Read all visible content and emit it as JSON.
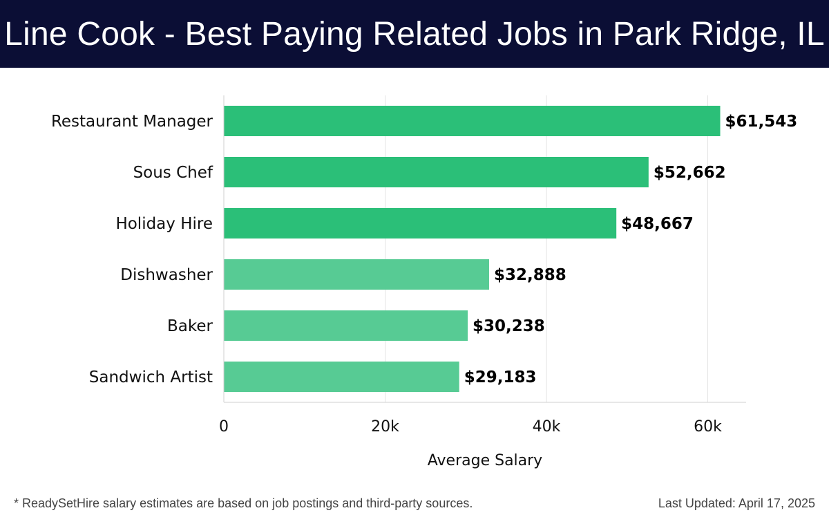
{
  "header": {
    "title": "Line Cook - Best Paying Related Jobs in Park Ridge, IL"
  },
  "footer": {
    "note": "* ReadySetHire salary estimates are based on job postings and third-party sources.",
    "updated": "Last Updated: April 17, 2025"
  },
  "colors": {
    "header_bg": "#0b0e35",
    "bar_dark": "#2bbf78",
    "bar_light": "#57cb94",
    "grid": "#e3e3e3"
  },
  "chart_data": {
    "type": "bar",
    "orientation": "horizontal",
    "title": "Line Cook - Best Paying Related Jobs in Park Ridge, IL",
    "xlabel": "Average Salary",
    "ylabel": "",
    "categories": [
      "Restaurant Manager",
      "Sous Chef",
      "Holiday Hire",
      "Dishwasher",
      "Baker",
      "Sandwich Artist"
    ],
    "values": [
      61543,
      52662,
      48667,
      32888,
      30238,
      29183
    ],
    "value_labels": [
      "$61,543",
      "$52,662",
      "$48,667",
      "$32,888",
      "$30,238",
      "$29,183"
    ],
    "bar_shades": [
      "dark",
      "dark",
      "dark",
      "light",
      "light",
      "light"
    ],
    "xlim": [
      0,
      65000
    ],
    "xticks": [
      0,
      20000,
      40000,
      60000
    ],
    "xtick_labels": [
      "0",
      "20k",
      "40k",
      "60k"
    ],
    "grid": true,
    "legend": "none"
  }
}
